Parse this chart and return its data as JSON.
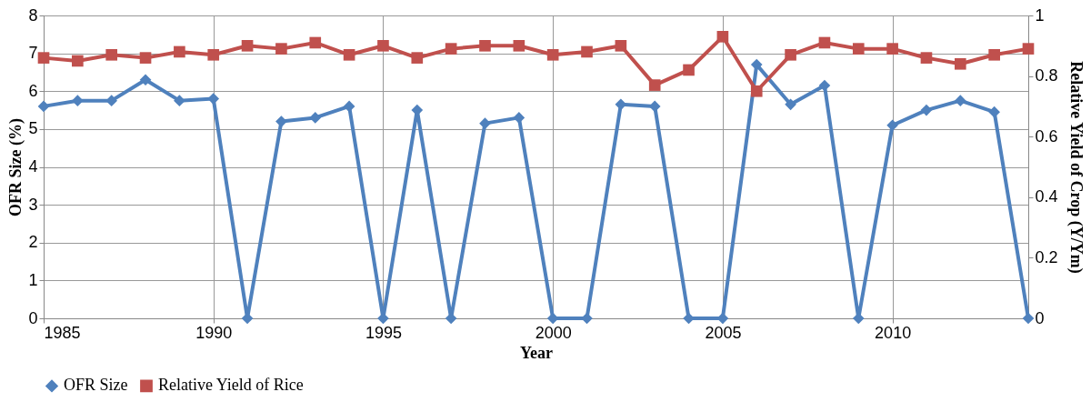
{
  "chart_data": {
    "type": "line",
    "xlabel": "Year",
    "ylabel": "OFR Size (%)",
    "y2label": "Relative Yield of Crop (Y/Ym)",
    "x": [
      1985,
      1986,
      1987,
      1988,
      1989,
      1990,
      1991,
      1992,
      1993,
      1994,
      1995,
      1996,
      1997,
      1998,
      1999,
      2000,
      2001,
      2002,
      2003,
      2004,
      2005,
      2006,
      2007,
      2008,
      2009,
      2010,
      2011,
      2012,
      2013,
      2014
    ],
    "series": [
      {
        "name": "OFR Size",
        "color": "#4f81bd",
        "marker": "diamond",
        "values": [
          5.6,
          5.75,
          5.75,
          6.3,
          5.75,
          5.8,
          0,
          5.2,
          5.3,
          5.6,
          0,
          5.5,
          0,
          5.15,
          5.3,
          0,
          0,
          5.65,
          5.6,
          0,
          0,
          6.7,
          5.65,
          6.15,
          0,
          5.1,
          5.5,
          5.75,
          5.45,
          0
        ]
      },
      {
        "name": "Relative Yield of Rice",
        "color": "#c0504d",
        "marker": "square",
        "axis": "y2",
        "values": [
          0.86,
          0.85,
          0.87,
          0.86,
          0.88,
          0.87,
          0.9,
          0.89,
          0.91,
          0.87,
          0.9,
          0.86,
          0.89,
          0.9,
          0.9,
          0.87,
          0.88,
          0.9,
          0.77,
          0.82,
          0.93,
          0.75,
          0.87,
          0.91,
          0.89,
          0.89,
          0.86,
          0.84,
          0.87,
          0.89
        ]
      }
    ],
    "xlim": [
      1985,
      2014
    ],
    "xticks": [
      1985,
      1990,
      1995,
      2000,
      2005,
      2010
    ],
    "ylim": [
      0,
      8
    ],
    "yticks": [
      0,
      1,
      2,
      3,
      4,
      5,
      6,
      7,
      8
    ],
    "y2lim": [
      0,
      1
    ],
    "y2ticks": [
      0,
      0.2,
      0.4,
      0.6,
      0.8,
      1
    ],
    "grid": true,
    "legend": "bottom",
    "line_style": "solid"
  }
}
